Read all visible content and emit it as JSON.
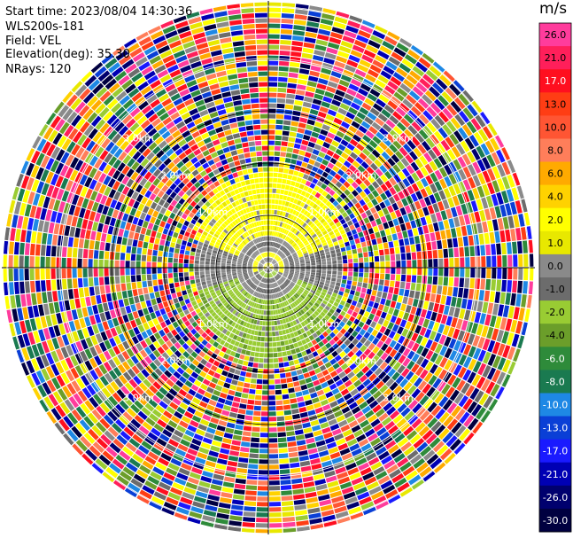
{
  "header": {
    "start_time": "Start time: 2023/08/04 14:30:36",
    "instrument": "WLS200s-181",
    "field": "Field: VEL",
    "elevation": "Elevation(deg): 35.30",
    "nrays": "NRays: 120"
  },
  "colorbar": {
    "title": "m/s",
    "entries": [
      {
        "label": "26.0",
        "color": "#ff3c9c"
      },
      {
        "label": "21.0",
        "color": "#ff1f5a"
      },
      {
        "label": "17.0",
        "color": "#ff0f1f"
      },
      {
        "label": "13.0",
        "color": "#ff3d14"
      },
      {
        "label": "10.0",
        "color": "#ff5533"
      },
      {
        "label": "8.0",
        "color": "#ff7e5a"
      },
      {
        "label": "6.0",
        "color": "#ffaa00"
      },
      {
        "label": "4.0",
        "color": "#ffd200"
      },
      {
        "label": "2.0",
        "color": "#ffff00"
      },
      {
        "label": "1.0",
        "color": "#e8e800"
      },
      {
        "label": "0.0",
        "color": "#8a8a8a"
      },
      {
        "label": "-1.0",
        "color": "#6c6c6c"
      },
      {
        "label": "-2.0",
        "color": "#99cc33"
      },
      {
        "label": "-4.0",
        "color": "#6b9e2a"
      },
      {
        "label": "-6.0",
        "color": "#2e8b3a"
      },
      {
        "label": "-8.0",
        "color": "#1a7a50"
      },
      {
        "label": "-10.0",
        "color": "#1e88e5"
      },
      {
        "label": "-13.0",
        "color": "#0a3fd6"
      },
      {
        "label": "-17.0",
        "color": "#1a1aff"
      },
      {
        "label": "-21.0",
        "color": "#0000b4"
      },
      {
        "label": "-26.0",
        "color": "#00006e"
      },
      {
        "label": "-30.0",
        "color": "#000040"
      }
    ]
  },
  "chart_data": {
    "type": "heatmap",
    "projection": "polar (PPI scan)",
    "grid": true,
    "range_ring_labels": [
      "1.0km",
      "2.0km",
      "3.0km"
    ],
    "rays": 120,
    "elevation_deg": 35.3,
    "pattern": {
      "center_zone": "alternating grey (0.0 / -1.0 m/s)",
      "north_sector": "yellow (1.0 to 2.0 m/s) between ~0.5 km and ~1.5 km",
      "south_sector": "olive green (-2.0 to -4.0 m/s) between ~0.5 km and ~1.5 km",
      "outer_zone": "noise across all colors beyond ~1.6 km"
    }
  }
}
